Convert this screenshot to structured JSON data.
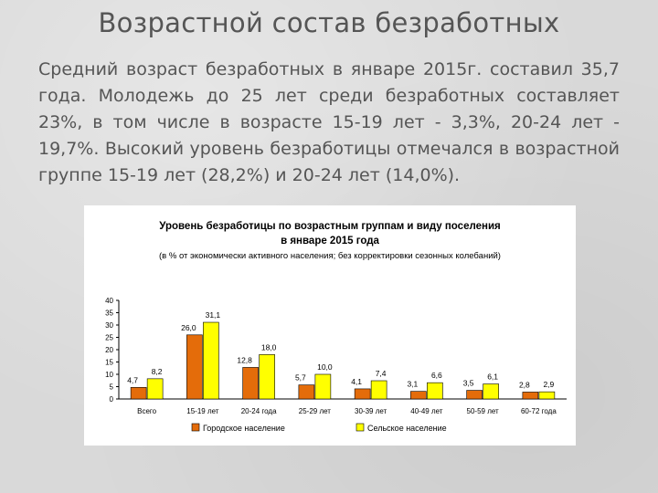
{
  "slide": {
    "title": "Возрастной состав безработных",
    "text": "Средний возраст безработных в январе 2015г. составил 35,7 года. Молодежь до 25 лет среди безработных составляет 23%, в том числе в возрасте 15-19 лет - 3,3%, 20-24 лет - 19,7%. Высокий уровень безработицы отмечался в возрастной группе 15-19 лет (28,2%) и 20-24 лет (14,0%)."
  },
  "chart_data": {
    "type": "bar",
    "title_line1": "Уровень безработицы по возрастным группам и виду поселения",
    "title_line2": "в январе 2015 года",
    "subtitle": "(в % от экономически активного населения; без корректировки сезонных колебаний)",
    "categories": [
      "Всего",
      "15-19 лет",
      "20-24 года",
      "25-29 лет",
      "30-39 лет",
      "40-49 лет",
      "50-59 лет",
      "60-72 года"
    ],
    "series": [
      {
        "name": "Городское население",
        "color": "#e46c0a",
        "values": [
          4.7,
          26.0,
          12.8,
          5.7,
          4.1,
          3.1,
          3.5,
          2.8
        ],
        "labels": [
          "4,7",
          "26,0",
          "12,8",
          "5,7",
          "4,1",
          "3,1",
          "3,5",
          "2,8"
        ]
      },
      {
        "name": "Сельское население",
        "color": "#ffff00",
        "values": [
          8.2,
          31.1,
          18.0,
          10.0,
          7.4,
          6.6,
          6.1,
          2.9
        ],
        "labels": [
          "8,2",
          "31,1",
          "18,0",
          "10,0",
          "7,4",
          "6,6",
          "6,1",
          "2,9"
        ]
      }
    ],
    "yticks": [
      0,
      5,
      10,
      15,
      20,
      25,
      30,
      35,
      40
    ],
    "ylim": [
      0,
      40
    ],
    "grid": false,
    "legend_position": "bottom"
  }
}
